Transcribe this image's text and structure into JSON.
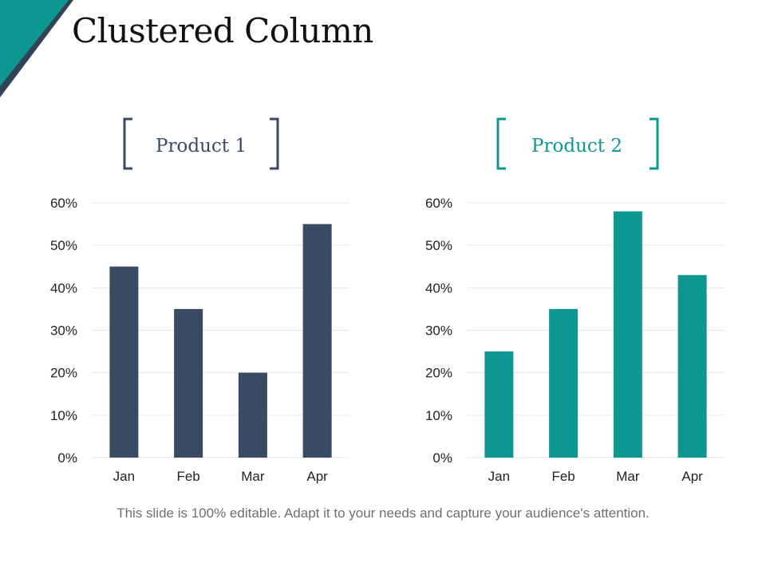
{
  "slide": {
    "title": "Clustered Column",
    "footer": "This slide is 100% editable. Adapt it to your needs and capture your audience's attention."
  },
  "colors": {
    "accent_teal": "#0d9790",
    "corner_dark": "#314457",
    "product1": "#394b63",
    "product2": "#0d9790",
    "gridline": "#e6e6e6"
  },
  "chart_data": [
    {
      "type": "bar",
      "title": "Product 1",
      "categories": [
        "Jan",
        "Feb",
        "Mar",
        "Apr"
      ],
      "series": [
        {
          "name": "Product 1",
          "values": [
            45,
            35,
            20,
            55
          ]
        }
      ],
      "ylim": [
        0,
        60
      ],
      "yticks": [
        0,
        10,
        20,
        30,
        40,
        50,
        60
      ],
      "ytick_labels": [
        "0%",
        "10%",
        "20%",
        "30%",
        "40%",
        "50%",
        "60%"
      ],
      "xlabel": "",
      "ylabel": "",
      "grid": true
    },
    {
      "type": "bar",
      "title": "Product 2",
      "categories": [
        "Jan",
        "Feb",
        "Mar",
        "Apr"
      ],
      "series": [
        {
          "name": "Product 2",
          "values": [
            25,
            35,
            58,
            43
          ]
        }
      ],
      "ylim": [
        0,
        60
      ],
      "yticks": [
        0,
        10,
        20,
        30,
        40,
        50,
        60
      ],
      "ytick_labels": [
        "0%",
        "10%",
        "20%",
        "30%",
        "40%",
        "50%",
        "60%"
      ],
      "xlabel": "",
      "ylabel": "",
      "grid": true
    }
  ]
}
